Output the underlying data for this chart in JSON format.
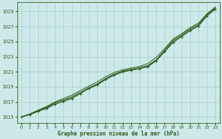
{
  "xlabel": "Graphe pression niveau de la mer (hPa)",
  "xlim": [
    -0.5,
    23.5
  ],
  "ylim": [
    1014.2,
    1030.2
  ],
  "yticks": [
    1015,
    1017,
    1019,
    1021,
    1023,
    1025,
    1027,
    1029
  ],
  "xticks": [
    0,
    1,
    2,
    3,
    4,
    5,
    6,
    7,
    8,
    9,
    10,
    11,
    12,
    13,
    14,
    15,
    16,
    17,
    18,
    19,
    20,
    21,
    22,
    23
  ],
  "background_color": "#cce8e8",
  "grid_color": "#aacccc",
  "line_color": "#2d5a1b",
  "x": [
    0,
    1,
    2,
    3,
    4,
    5,
    6,
    7,
    8,
    9,
    10,
    11,
    12,
    13,
    14,
    15,
    16,
    17,
    18,
    19,
    20,
    21,
    22,
    23
  ],
  "y_main": [
    1015.0,
    1015.35,
    1015.85,
    1016.3,
    1016.9,
    1017.3,
    1017.7,
    1018.3,
    1018.9,
    1019.4,
    1020.1,
    1020.7,
    1021.1,
    1021.35,
    1021.55,
    1021.85,
    1022.6,
    1023.9,
    1025.2,
    1025.9,
    1026.7,
    1027.3,
    1028.6,
    1029.5
  ],
  "y_smooth1": [
    1015.0,
    1015.4,
    1015.9,
    1016.4,
    1017.0,
    1017.45,
    1017.9,
    1018.5,
    1019.1,
    1019.65,
    1020.35,
    1020.9,
    1021.25,
    1021.5,
    1021.7,
    1022.1,
    1022.9,
    1024.1,
    1025.35,
    1026.05,
    1026.85,
    1027.45,
    1028.7,
    1029.6
  ],
  "y_smooth2": [
    1015.0,
    1015.3,
    1015.75,
    1016.2,
    1016.75,
    1017.15,
    1017.55,
    1018.15,
    1018.75,
    1019.25,
    1019.95,
    1020.55,
    1020.95,
    1021.2,
    1021.4,
    1021.75,
    1022.5,
    1023.75,
    1025.05,
    1025.75,
    1026.55,
    1027.15,
    1028.45,
    1029.4
  ],
  "y_marker": [
    1015.0,
    1015.3,
    1015.75,
    1016.1,
    1016.7,
    1017.05,
    1017.45,
    1018.1,
    1018.8,
    1019.3,
    1020.05,
    1020.6,
    1021.05,
    1021.25,
    1021.4,
    1021.65,
    1022.45,
    1023.65,
    1024.9,
    1025.65,
    1026.45,
    1027.05,
    1028.4,
    1029.3
  ]
}
